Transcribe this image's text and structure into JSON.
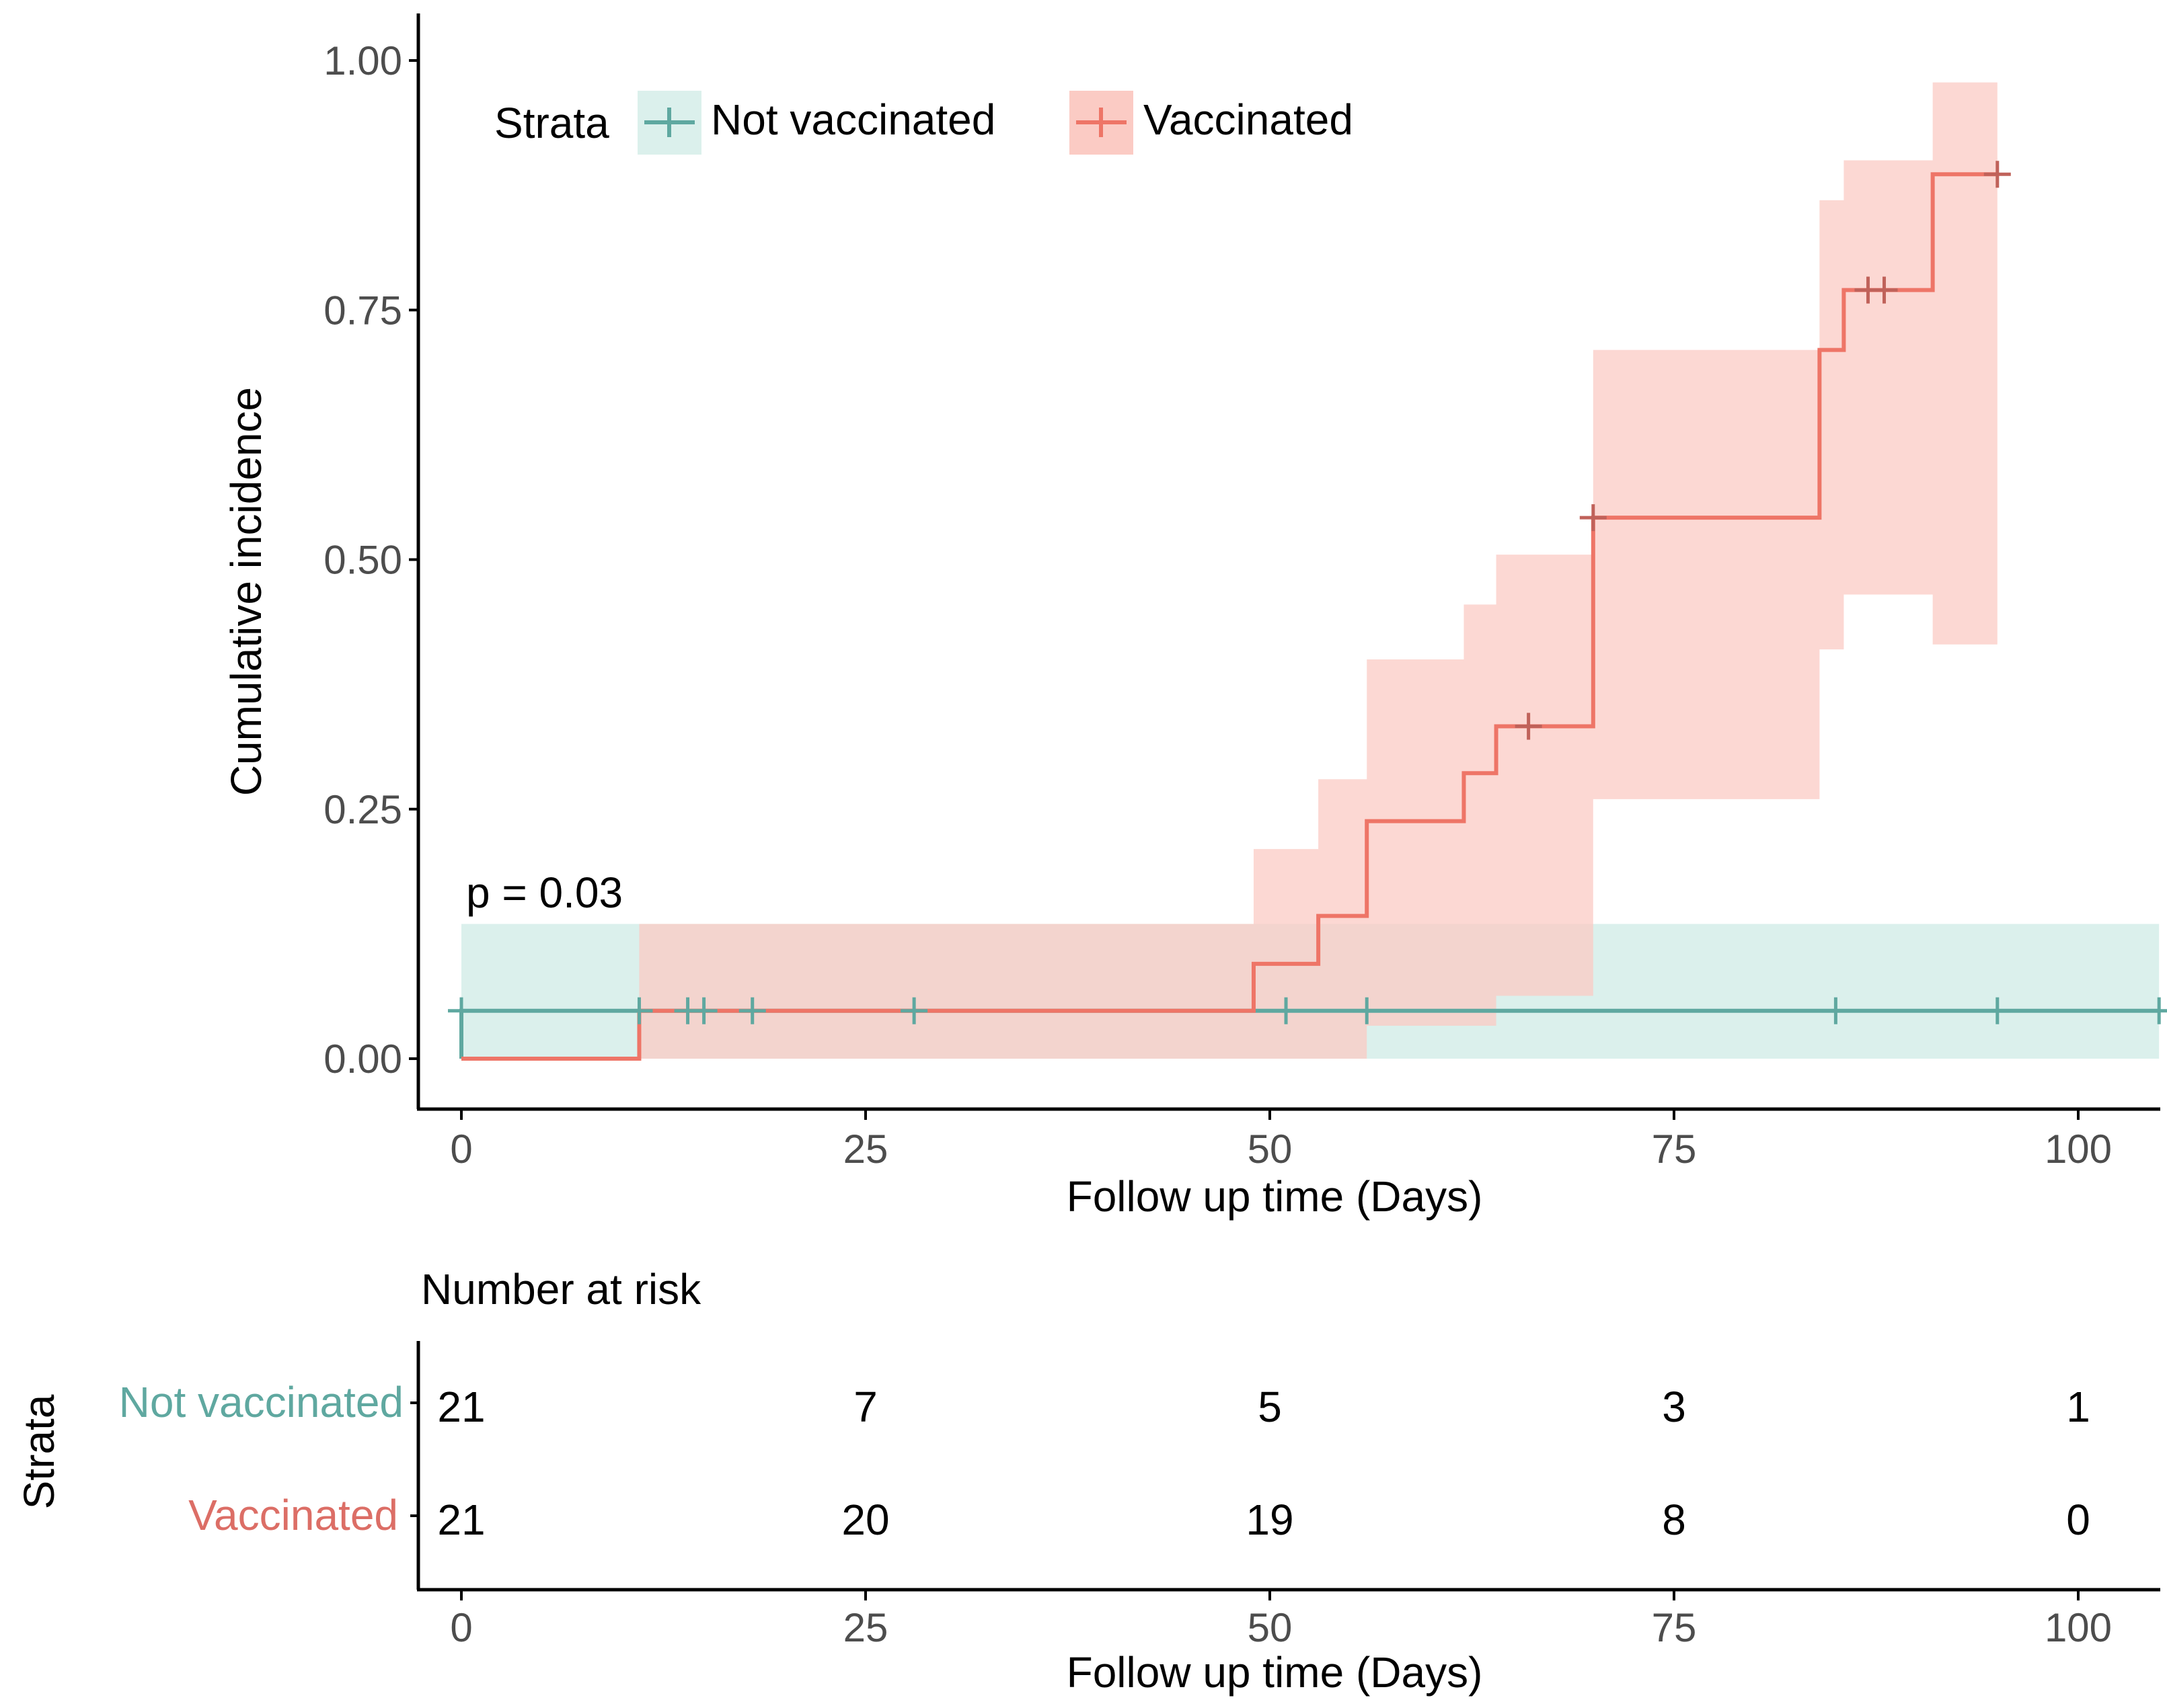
{
  "chart_data": {
    "type": "line",
    "subtype": "kaplan-meier cumulative incidence step plot with confidence bands",
    "ylabel": "Cumulative incidence",
    "xlabel": "Follow up time (Days)",
    "xlim": [
      -2,
      105
    ],
    "ylim": [
      -0.05,
      1.05
    ],
    "x_ticks": [
      0,
      25,
      50,
      75,
      100
    ],
    "x_tick_labels": [
      "0",
      "25",
      "50",
      "75",
      "100"
    ],
    "y_ticks": [
      0,
      0.25,
      0.5,
      0.75,
      1.0
    ],
    "y_tick_labels": [
      "0.00",
      "0.25",
      "0.50",
      "0.75",
      "1.00"
    ],
    "pvalue_text": "p = 0.03",
    "pvalue_pos": {
      "x": 0.5,
      "y": 0.165
    },
    "grid": false,
    "legend": {
      "title": "Strata",
      "position": "top-left",
      "entries": [
        "Not vaccinated",
        "Vaccinated"
      ]
    },
    "series": [
      {
        "name": "Not vaccinated",
        "color": "#5FA8A0",
        "band_color": "#DBF0EC",
        "steps": [
          [
            0,
            0.0
          ],
          [
            0,
            0.048
          ],
          [
            105,
            0.048
          ]
        ],
        "band": [
          [
            0,
            0.0,
            0.135
          ],
          [
            105,
            0.0,
            0.135
          ]
        ],
        "censor_x": [
          0,
          11,
          14,
          15,
          18,
          28,
          51,
          56,
          85,
          95,
          105
        ],
        "censor_y": 0.048
      },
      {
        "name": "Vaccinated",
        "color": "#EE7567",
        "band_color": "#FBCBC4",
        "steps": [
          [
            0,
            0.0
          ],
          [
            11,
            0.048
          ],
          [
            49,
            0.095
          ],
          [
            53,
            0.143
          ],
          [
            56,
            0.238
          ],
          [
            62,
            0.286
          ],
          [
            64,
            0.333
          ],
          [
            70,
            0.542
          ],
          [
            84,
            0.71
          ],
          [
            85.5,
            0.77
          ],
          [
            91,
            0.886
          ],
          [
            95,
            0.886
          ]
        ],
        "band": [
          [
            11,
            0.0,
            0.135
          ],
          [
            49,
            0.0,
            0.21
          ],
          [
            53,
            0.0,
            0.28
          ],
          [
            56,
            0.033,
            0.4
          ],
          [
            62,
            0.033,
            0.455
          ],
          [
            64,
            0.063,
            0.505
          ],
          [
            70,
            0.26,
            0.71
          ],
          [
            84,
            0.41,
            0.86
          ],
          [
            85.5,
            0.465,
            0.9
          ],
          [
            91,
            0.415,
            0.978
          ],
          [
            95,
            0.415,
            0.978
          ]
        ],
        "censor_x": [
          66,
          70,
          87,
          88,
          95
        ],
        "censor_y_map": [
          0.333,
          0.542,
          0.77,
          0.77,
          0.886
        ]
      }
    ],
    "risk_table": {
      "title": "Number at risk",
      "ylabel": "Strata",
      "xlabel": "Follow up time (Days)",
      "times": [
        0,
        25,
        50,
        75,
        100
      ],
      "time_labels": [
        "0",
        "25",
        "50",
        "75",
        "100"
      ],
      "rows": [
        {
          "name": "Not vaccinated",
          "color": "#5FA8A0",
          "counts": [
            "21",
            "7",
            "5",
            "3",
            "1"
          ]
        },
        {
          "name": "Vaccinated",
          "color": "#DC6E66",
          "counts": [
            "21",
            "20",
            "19",
            "8",
            "0"
          ]
        }
      ]
    }
  }
}
